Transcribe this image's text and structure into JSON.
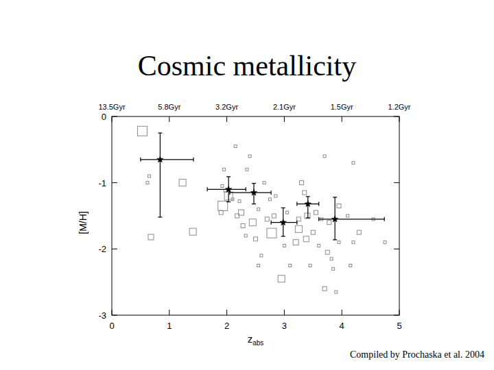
{
  "chart_data": {
    "type": "scatter",
    "title": "Cosmic metallicity",
    "note": "Compiled by Prochaska et al. 2004",
    "x_label": {
      "text": "z",
      "subscript": "abs"
    },
    "y_label": "[M/H]",
    "xlim": [
      0,
      5
    ],
    "ylim": [
      -3,
      0
    ],
    "xticks": [
      0,
      1,
      2,
      3,
      4,
      5
    ],
    "yticks": [
      0,
      -1,
      -2,
      -3
    ],
    "x2ticks": [
      {
        "value": 0,
        "label": "13.5Gyr"
      },
      {
        "value": 1,
        "label": "5.8Gyr"
      },
      {
        "value": 2,
        "label": "3.2Gyr"
      },
      {
        "value": 3,
        "label": "2.1Gyr"
      },
      {
        "value": 4,
        "label": "1.5Gyr"
      },
      {
        "value": 5,
        "label": "1.2Gyr"
      }
    ],
    "grid": false,
    "series": [
      {
        "color": "#8a8a8a",
        "marker": "square",
        "x": [
          0.53,
          0.68,
          1.23,
          1.41,
          0.65,
          0.62,
          1.9,
          1.93,
          2.03,
          1.95,
          1.92,
          1.97,
          2.15,
          2.1,
          2.22,
          2.25,
          2.28,
          2.33,
          2.18,
          2.35,
          2.4,
          2.45,
          2.5,
          2.55,
          2.6,
          2.55,
          2.65,
          2.7,
          2.75,
          2.78,
          2.82,
          2.85,
          2.95,
          3.0,
          3.05,
          3.1,
          3.2,
          3.25,
          3.25,
          3.3,
          3.35,
          3.38,
          3.4,
          3.45,
          3.5,
          3.55,
          3.6,
          3.65,
          3.7,
          3.7,
          3.75,
          3.78,
          3.82,
          3.85,
          3.9,
          3.95,
          4.1,
          4.2,
          4.15,
          4.3,
          4.55,
          4.75,
          4.2,
          3.95
        ],
        "values": [
          -0.22,
          -1.82,
          -1.0,
          -1.74,
          -0.9,
          -1.0,
          -1.45,
          -1.35,
          -1.2,
          -0.8,
          -1.05,
          -1.12,
          -0.45,
          -1.25,
          -1.28,
          -1.45,
          -1.65,
          -1.8,
          -1.5,
          -0.8,
          -0.6,
          -1.6,
          -1.85,
          -1.4,
          -2.1,
          -2.25,
          -1.0,
          -1.55,
          -1.25,
          -1.76,
          -1.5,
          -1.2,
          -2.45,
          -1.95,
          -1.45,
          -2.25,
          -1.9,
          -1.7,
          -1.55,
          -1.0,
          -1.15,
          -1.85,
          -1.5,
          -2.25,
          -1.75,
          -1.45,
          -1.95,
          -1.55,
          -0.6,
          -2.6,
          -2.05,
          -1.6,
          -2.15,
          -2.3,
          -2.65,
          -1.9,
          -1.5,
          -0.7,
          -2.25,
          -1.75,
          -1.55,
          -1.9,
          -1.9,
          -1.35
        ],
        "sizes": [
          3,
          1.5,
          2,
          2,
          0.5,
          0.5,
          1,
          3,
          2.5,
          0.5,
          0.5,
          0.5,
          0.5,
          0.5,
          0.5,
          1.5,
          1,
          0.5,
          1,
          0.5,
          0.5,
          2,
          1,
          0.5,
          0.5,
          0.5,
          0.5,
          1,
          0.5,
          3,
          1,
          0.5,
          2,
          0.5,
          0.5,
          0.5,
          1.5,
          2,
          1,
          1,
          1,
          1.5,
          1.5,
          0.5,
          1,
          1,
          0.5,
          0.5,
          0.5,
          1,
          1,
          1,
          0.5,
          0.5,
          0.5,
          0.5,
          0.5,
          0.5,
          0.5,
          1,
          0.5,
          0.5,
          0.5,
          1
        ]
      },
      {
        "color": "#000000",
        "marker": "star",
        "x": [
          0.84,
          2.03,
          2.47,
          2.98,
          3.41,
          3.88
        ],
        "values": [
          -0.65,
          -1.1,
          -1.15,
          -1.6,
          -1.32,
          -1.55
        ],
        "x_err_low": [
          0.34,
          0.37,
          0.42,
          0.21,
          0.19,
          0.28
        ],
        "x_err_high": [
          0.58,
          0.3,
          0.3,
          0.24,
          0.19,
          0.86
        ],
        "y_err_low": [
          0.87,
          0.19,
          0.17,
          0.21,
          0.21,
          0.31
        ],
        "y_err_high": [
          0.4,
          0.19,
          0.14,
          0.22,
          0.11,
          0.33
        ]
      }
    ]
  }
}
